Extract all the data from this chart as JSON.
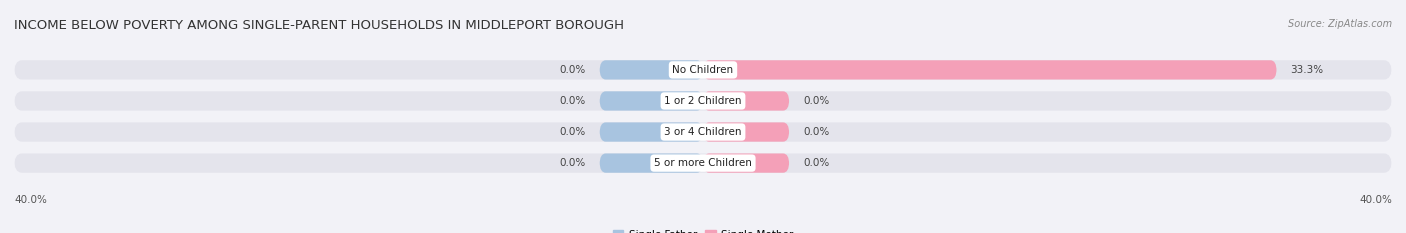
{
  "title": "INCOME BELOW POVERTY AMONG SINGLE-PARENT HOUSEHOLDS IN MIDDLEPORT BOROUGH",
  "source": "Source: ZipAtlas.com",
  "categories": [
    "No Children",
    "1 or 2 Children",
    "3 or 4 Children",
    "5 or more Children"
  ],
  "single_father_values": [
    0.0,
    0.0,
    0.0,
    0.0
  ],
  "single_mother_values": [
    33.3,
    0.0,
    0.0,
    0.0
  ],
  "xlim": [
    -40,
    40
  ],
  "father_color": "#a8c4e0",
  "mother_color": "#f4a0b8",
  "bar_height": 0.62,
  "background_color": "#f2f2f7",
  "bar_bg_color": "#e4e4ec",
  "title_fontsize": 9.5,
  "label_fontsize": 7.5,
  "category_fontsize": 7.5,
  "source_fontsize": 7,
  "axis_label_left": "40.0%",
  "axis_label_right": "40.0%",
  "father_stub": 6.0,
  "mother_stub": 5.0
}
